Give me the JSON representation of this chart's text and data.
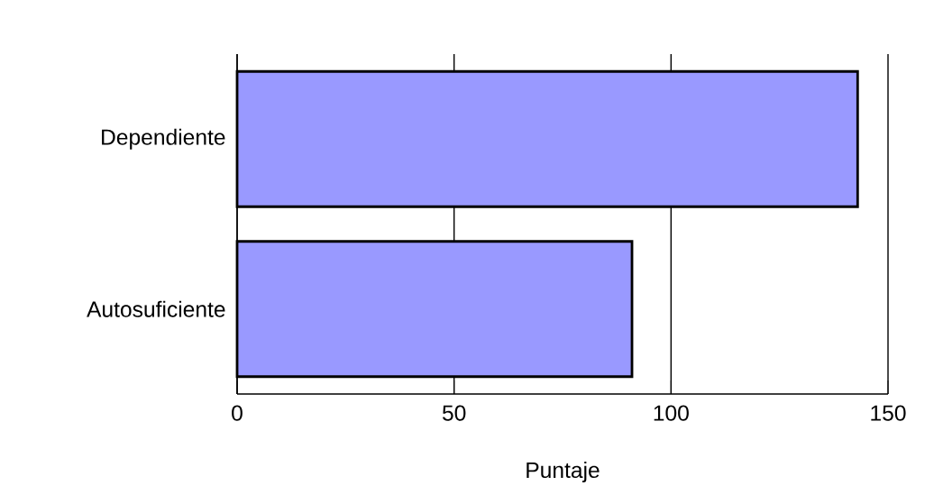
{
  "chart_data": {
    "type": "bar",
    "orientation": "horizontal",
    "categories": [
      "Dependiente",
      "Autosuficiente"
    ],
    "values": [
      143,
      91
    ],
    "color": "#9999ff",
    "xlabel": "Puntaje",
    "xlim": [
      0,
      150
    ],
    "xticks": [
      0,
      50,
      100,
      150
    ],
    "grid": "x"
  }
}
